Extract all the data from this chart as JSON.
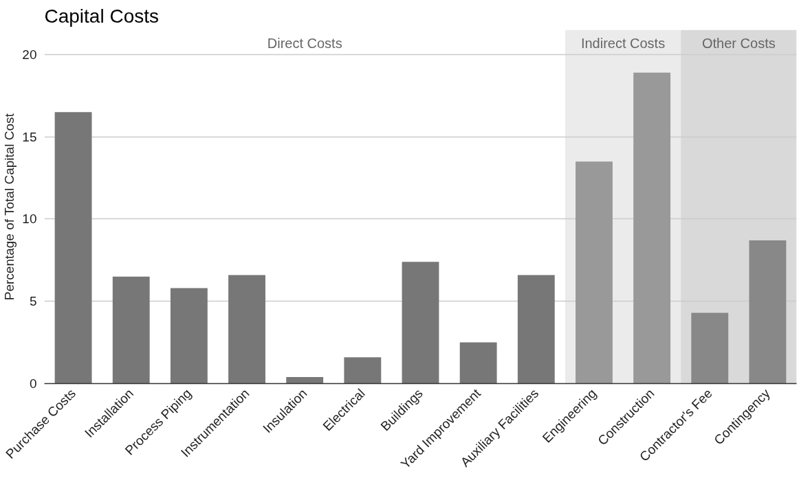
{
  "chart_data": {
    "type": "bar",
    "title": "Capital Costs",
    "ylabel": "Percentage of Total Capital Cost",
    "categories": [
      "Purchase Costs",
      "Installation",
      "Process Piping",
      "Instrumentation",
      "Insulation",
      "Electrical",
      "Buildings",
      "Yard Improvement",
      "Auxiliary Facilities",
      "Engineering",
      "Construction",
      "Contractor's Fee",
      "Contingency"
    ],
    "values": [
      16.5,
      6.5,
      5.8,
      6.6,
      0.4,
      1.6,
      7.4,
      2.5,
      6.6,
      13.5,
      18.9,
      4.3,
      8.7
    ],
    "colors": [
      "#777777",
      "#777777",
      "#777777",
      "#777777",
      "#777777",
      "#777777",
      "#777777",
      "#777777",
      "#777777",
      "#999999",
      "#999999",
      "#888888",
      "#888888"
    ],
    "annotations": [
      "Direct Costs"
    ],
    "ylim": [
      0,
      21.5
    ],
    "yticks": [
      0,
      5,
      10,
      15,
      20
    ],
    "grid": "y",
    "bands": [
      {
        "axis": "x",
        "from": "Engineering",
        "to": "Construction",
        "label": "Indirect Costs",
        "color": "#ebebeb"
      },
      {
        "axis": "x",
        "from": "Contractor's Fee",
        "to": "Contingency",
        "label": "Other Costs",
        "color": "#d9d9d9"
      }
    ]
  }
}
